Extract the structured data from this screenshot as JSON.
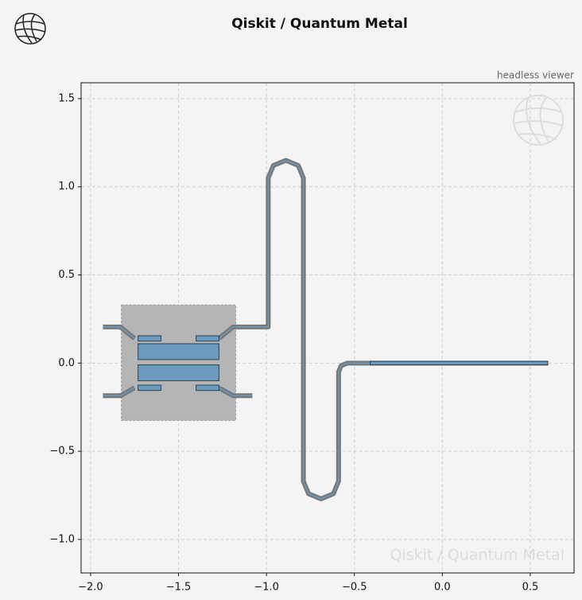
{
  "chart_data": {
    "type": "layout",
    "title": "Qiskit / Quantum Metal",
    "subtitle": "headless viewer",
    "watermark": "Qiskit / Quantum Metal",
    "xlim": [
      -2.054,
      0.749
    ],
    "ylim": [
      -1.19,
      1.59
    ],
    "xticks": [
      {
        "value": -2.0,
        "label": "−2.0"
      },
      {
        "value": -1.5,
        "label": "−1.5"
      },
      {
        "value": -1.0,
        "label": "−1.0"
      },
      {
        "value": -0.5,
        "label": "−0.5"
      },
      {
        "value": 0,
        "label": "0.0"
      },
      0.5
    ],
    "yticks": [
      {
        "value": -1.0,
        "label": "−1.0"
      },
      {
        "value": -0.5,
        "label": "−0.5"
      },
      {
        "value": 0,
        "label": "0.0"
      },
      0.5,
      {
        "value": 1.0,
        "label": "1.0"
      },
      1.5
    ],
    "grid": true,
    "pocket_color": "#b5b5b5",
    "pad_color": "#6a9bbf",
    "trace_color": "#777777",
    "pockets": [
      [
        -1.825,
        -0.325,
        -1.175,
        0.33
      ]
    ],
    "pads": [
      [
        -1.73,
        0.02,
        -1.27,
        0.11
      ],
      [
        -1.73,
        -0.1,
        -1.27,
        -0.01
      ],
      [
        -1.73,
        0.125,
        -1.6,
        0.155
      ],
      [
        -1.4,
        0.125,
        -1.27,
        0.155
      ],
      [
        -1.73,
        -0.155,
        -1.6,
        -0.125
      ],
      [
        -1.4,
        -0.155,
        -1.27,
        -0.125
      ],
      [
        -0.41,
        -0.01,
        0.6,
        0.01
      ]
    ],
    "traces": [
      [
        [
          -1.93,
          0.205
        ],
        [
          -1.83,
          0.205
        ],
        [
          -1.75,
          0.14
        ]
      ],
      [
        [
          -1.93,
          -0.185
        ],
        [
          -1.83,
          -0.185
        ],
        [
          -1.75,
          -0.14
        ]
      ],
      [
        [
          -1.27,
          -0.14
        ],
        [
          -1.19,
          -0.185
        ],
        [
          -1.08,
          -0.185
        ]
      ],
      [
        [
          -1.27,
          0.14
        ],
        [
          -1.19,
          0.205
        ],
        [
          -0.99,
          0.205
        ],
        [
          -0.99,
          1.05
        ],
        [
          -0.9607,
          1.1207
        ],
        [
          -0.89,
          1.15
        ],
        [
          -0.8193,
          1.1207
        ],
        [
          -0.79,
          1.05
        ],
        [
          -0.79,
          -0.67
        ],
        [
          -0.7607,
          -0.7407
        ],
        [
          -0.69,
          -0.77
        ],
        [
          -0.6193,
          -0.7407
        ],
        [
          -0.59,
          -0.67
        ],
        [
          -0.59,
          -0.05
        ],
        [
          -0.5754,
          -0.0146
        ],
        [
          -0.54,
          0.0
        ],
        [
          -0.4,
          0.0
        ],
        [
          0.6,
          0.0
        ]
      ]
    ]
  }
}
